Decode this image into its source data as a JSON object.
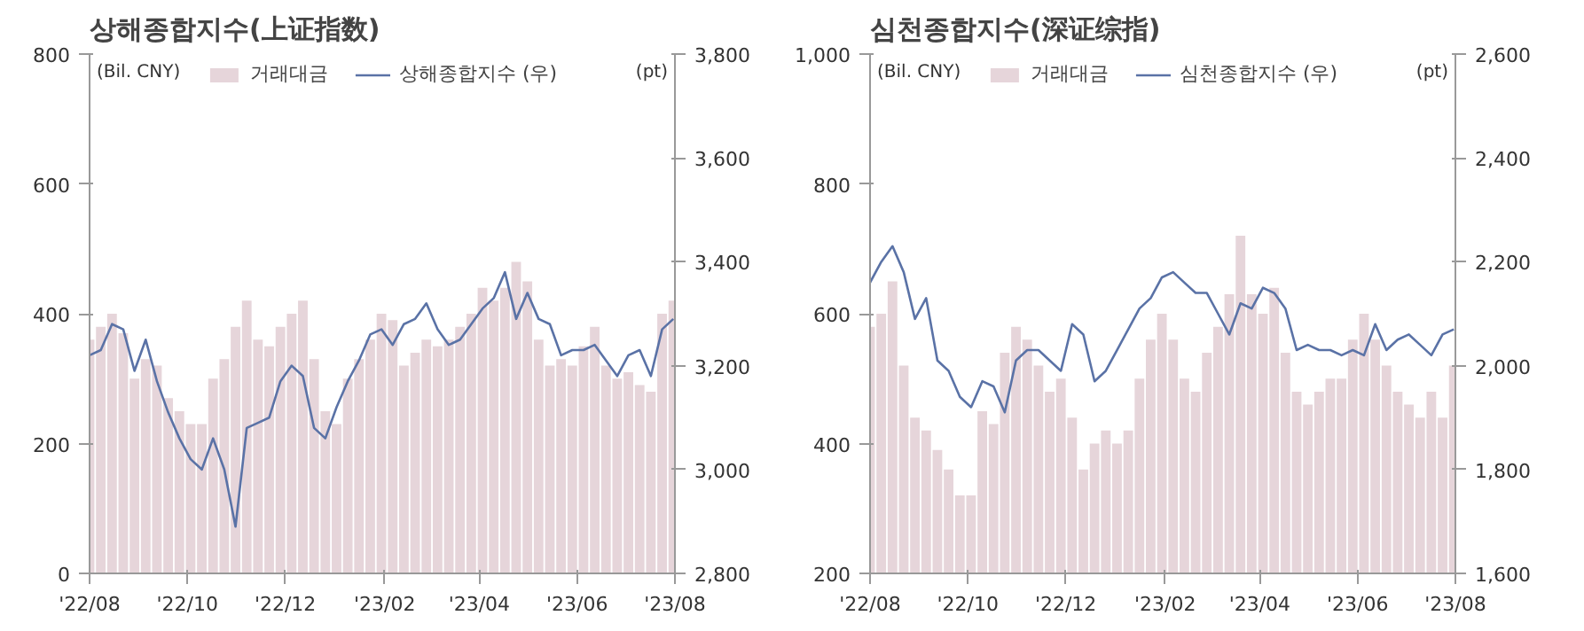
{
  "chart_data": [
    {
      "type": "bar",
      "title": "상해종합지수(上证指数)",
      "ylabel": "(Bil. CNY)",
      "y2label": "(pt)",
      "legend": "top",
      "grid": false,
      "x": [
        "2022-08-01",
        "2022-08-08",
        "2022-08-15",
        "2022-08-22",
        "2022-08-29",
        "2022-09-05",
        "2022-09-12",
        "2022-09-19",
        "2022-09-26",
        "2022-10-03",
        "2022-10-10",
        "2022-10-17",
        "2022-10-24",
        "2022-10-31",
        "2022-11-07",
        "2022-11-14",
        "2022-11-21",
        "2022-11-28",
        "2022-12-05",
        "2022-12-12",
        "2022-12-19",
        "2022-12-26",
        "2023-01-02",
        "2023-01-09",
        "2023-01-16",
        "2023-01-23",
        "2023-01-30",
        "2023-02-06",
        "2023-02-13",
        "2023-02-20",
        "2023-02-27",
        "2023-03-06",
        "2023-03-13",
        "2023-03-20",
        "2023-03-27",
        "2023-04-03",
        "2023-04-10",
        "2023-04-17",
        "2023-04-24",
        "2023-05-01",
        "2023-05-08",
        "2023-05-15",
        "2023-05-22",
        "2023-05-29",
        "2023-06-05",
        "2023-06-12",
        "2023-06-19",
        "2023-06-26",
        "2023-07-03",
        "2023-07-10",
        "2023-07-17",
        "2023-07-24",
        "2023-07-31"
      ],
      "xlim": [
        "2022-08-01",
        "2023-08-01"
      ],
      "xticks": [
        {
          "value": "2022-08-01",
          "label": "'22/08"
        },
        {
          "value": "2022-10-01",
          "label": "'22/10"
        },
        {
          "value": "2022-12-01",
          "label": "'22/12"
        },
        {
          "value": "2023-02-01",
          "label": "'23/02"
        },
        {
          "value": "2023-04-01",
          "label": "'23/04"
        },
        {
          "value": "2023-06-01",
          "label": "'23/06"
        },
        {
          "value": "2023-08-01",
          "label": "'23/08"
        }
      ],
      "ylim": [
        0,
        800
      ],
      "yticks": [
        0,
        200,
        400,
        600,
        800
      ],
      "y2lim": [
        2800,
        3800
      ],
      "y2ticks": [
        {
          "value": 2800,
          "label": "2,800"
        },
        {
          "value": 3000,
          "label": "3,000"
        },
        {
          "value": 3200,
          "label": "3,200"
        },
        {
          "value": 3400,
          "label": "3,400"
        },
        {
          "value": 3600,
          "label": "3,600"
        },
        {
          "value": 3800,
          "label": "3,800"
        }
      ],
      "series": [
        {
          "name": "거래대금",
          "color": "#e6d5da",
          "values": [
            360,
            380,
            400,
            370,
            300,
            330,
            320,
            270,
            250,
            230,
            230,
            300,
            330,
            380,
            420,
            360,
            350,
            380,
            400,
            420,
            330,
            250,
            230,
            300,
            330,
            360,
            400,
            390,
            320,
            340,
            360,
            350,
            360,
            380,
            400,
            440,
            420,
            440,
            480,
            450,
            360,
            320,
            330,
            320,
            350,
            380,
            320,
            300,
            310,
            290,
            280,
            400,
            420
          ]
        },
        {
          "name": "상해종합지수 (우)",
          "type": "line",
          "axis": "y2",
          "color": "#5a72a6",
          "values": [
            3220,
            3230,
            3280,
            3270,
            3190,
            3250,
            3170,
            3110,
            3060,
            3020,
            3000,
            3060,
            3000,
            2890,
            3080,
            3090,
            3100,
            3170,
            3200,
            3180,
            3080,
            3060,
            3120,
            3170,
            3210,
            3260,
            3270,
            3240,
            3280,
            3290,
            3320,
            3270,
            3240,
            3250,
            3280,
            3310,
            3330,
            3380,
            3290,
            3340,
            3290,
            3280,
            3220,
            3230,
            3230,
            3240,
            3210,
            3180,
            3220,
            3230,
            3180,
            3270,
            3290
          ]
        }
      ]
    },
    {
      "type": "bar",
      "title": "심천종합지수(深证综指)",
      "ylabel": "(Bil. CNY)",
      "y2label": "(pt)",
      "legend": "top",
      "grid": false,
      "x": [
        "2022-08-01",
        "2022-08-08",
        "2022-08-15",
        "2022-08-22",
        "2022-08-29",
        "2022-09-05",
        "2022-09-12",
        "2022-09-19",
        "2022-09-26",
        "2022-10-03",
        "2022-10-10",
        "2022-10-17",
        "2022-10-24",
        "2022-10-31",
        "2022-11-07",
        "2022-11-14",
        "2022-11-21",
        "2022-11-28",
        "2022-12-05",
        "2022-12-12",
        "2022-12-19",
        "2022-12-26",
        "2023-01-02",
        "2023-01-09",
        "2023-01-16",
        "2023-01-23",
        "2023-01-30",
        "2023-02-06",
        "2023-02-13",
        "2023-02-20",
        "2023-02-27",
        "2023-03-06",
        "2023-03-13",
        "2023-03-20",
        "2023-03-27",
        "2023-04-03",
        "2023-04-10",
        "2023-04-17",
        "2023-04-24",
        "2023-05-01",
        "2023-05-08",
        "2023-05-15",
        "2023-05-22",
        "2023-05-29",
        "2023-06-05",
        "2023-06-12",
        "2023-06-19",
        "2023-06-26",
        "2023-07-03",
        "2023-07-10",
        "2023-07-17",
        "2023-07-24",
        "2023-07-31"
      ],
      "xlim": [
        "2022-08-01",
        "2023-08-01"
      ],
      "xticks": [
        {
          "value": "2022-08-01",
          "label": "'22/08"
        },
        {
          "value": "2022-10-01",
          "label": "'22/10"
        },
        {
          "value": "2022-12-01",
          "label": "'22/12"
        },
        {
          "value": "2023-02-01",
          "label": "'23/02"
        },
        {
          "value": "2023-04-01",
          "label": "'23/04"
        },
        {
          "value": "2023-06-01",
          "label": "'23/06"
        },
        {
          "value": "2023-08-01",
          "label": "'23/08"
        }
      ],
      "ylim": [
        200,
        1000
      ],
      "yticks": [
        200,
        400,
        600,
        800,
        {
          "value": 1000,
          "label": "1,000"
        }
      ],
      "y2lim": [
        1600,
        2600
      ],
      "y2ticks": [
        {
          "value": 1600,
          "label": "1,600"
        },
        {
          "value": 1800,
          "label": "1,800"
        },
        {
          "value": 2000,
          "label": "2,000"
        },
        {
          "value": 2200,
          "label": "2,200"
        },
        {
          "value": 2400,
          "label": "2,400"
        },
        {
          "value": 2600,
          "label": "2,600"
        }
      ],
      "series": [
        {
          "name": "거래대금",
          "color": "#e6d5da",
          "values": [
            580,
            600,
            650,
            520,
            440,
            420,
            390,
            360,
            320,
            320,
            450,
            430,
            540,
            580,
            560,
            520,
            480,
            500,
            440,
            360,
            400,
            420,
            400,
            420,
            500,
            560,
            600,
            560,
            500,
            480,
            540,
            580,
            630,
            720,
            630,
            600,
            640,
            540,
            480,
            460,
            480,
            500,
            500,
            560,
            600,
            560,
            520,
            480,
            460,
            440,
            480,
            440,
            520
          ]
        },
        {
          "name": "심천종합지수 (우)",
          "type": "line",
          "axis": "y2",
          "color": "#5a72a6",
          "values": [
            2160,
            2200,
            2230,
            2180,
            2090,
            2130,
            2010,
            1990,
            1940,
            1920,
            1970,
            1960,
            1910,
            2010,
            2030,
            2030,
            2010,
            1990,
            2080,
            2060,
            1970,
            1990,
            2030,
            2070,
            2110,
            2130,
            2170,
            2180,
            2160,
            2140,
            2140,
            2100,
            2060,
            2120,
            2110,
            2150,
            2140,
            2110,
            2030,
            2040,
            2030,
            2030,
            2020,
            2030,
            2020,
            2080,
            2030,
            2050,
            2060,
            2040,
            2020,
            2060,
            2070
          ]
        }
      ]
    }
  ]
}
